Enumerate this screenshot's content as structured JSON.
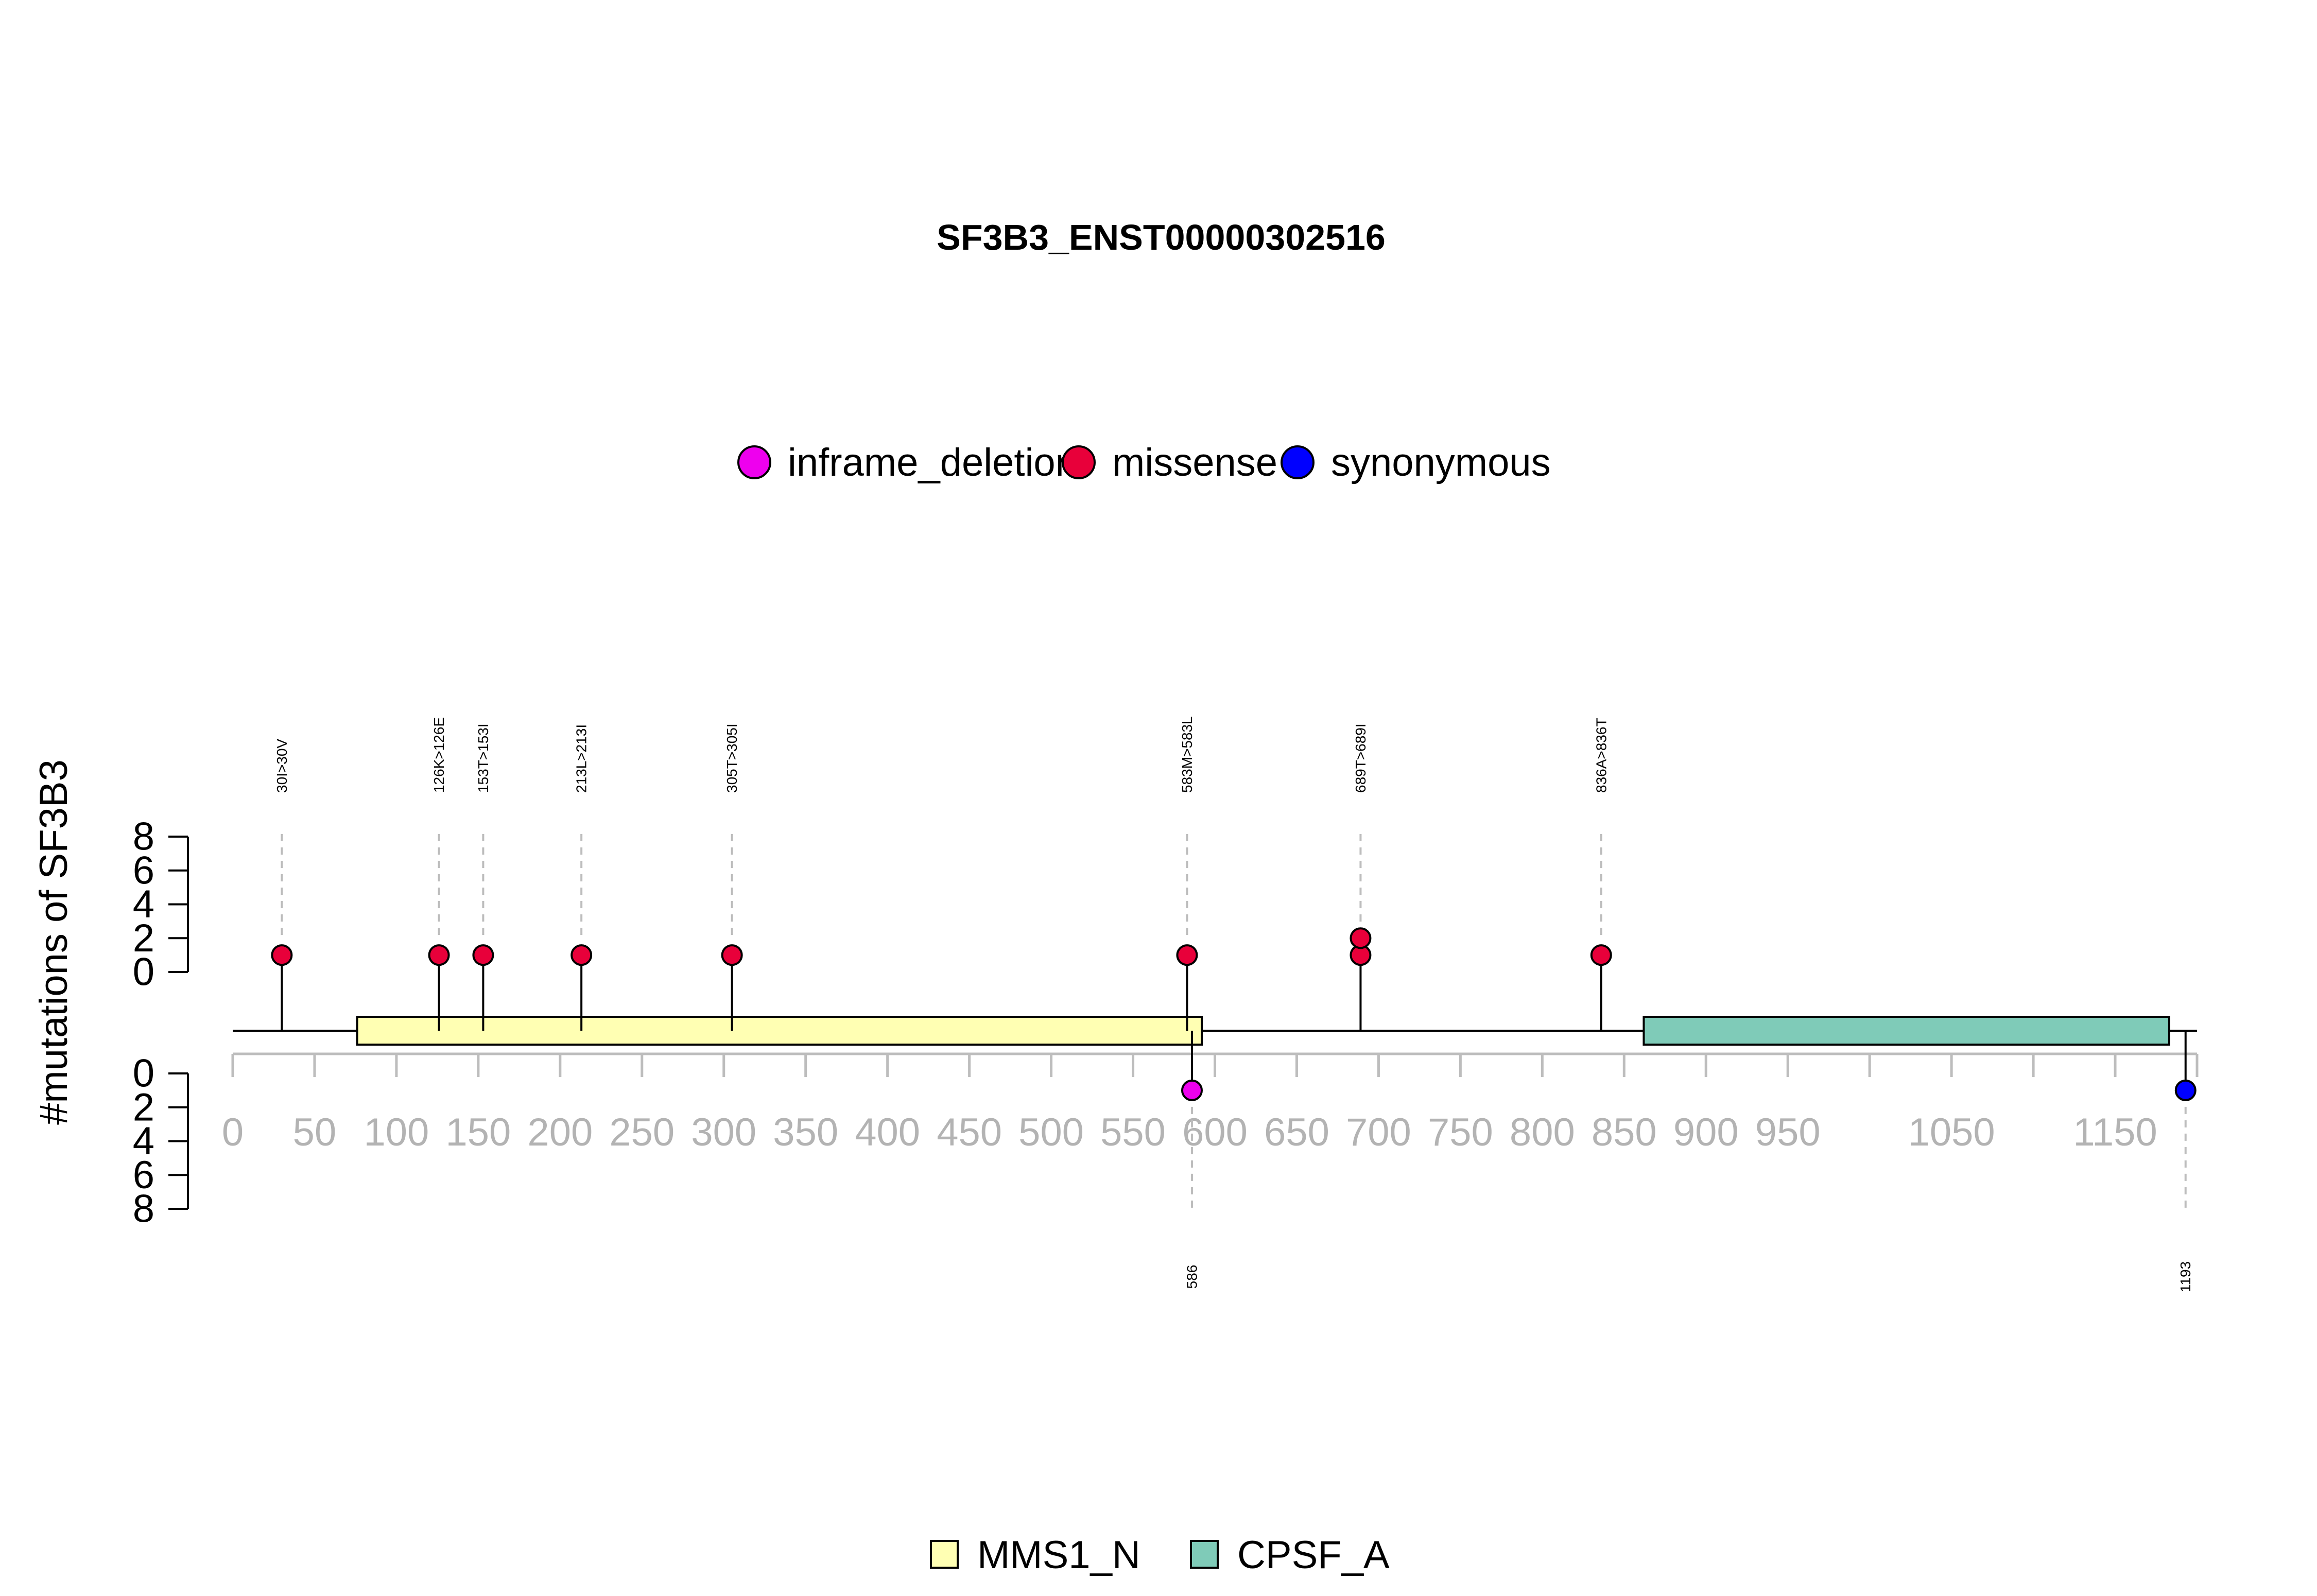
{
  "chart_data": {
    "type": "lollipop",
    "title": "SF3B3_ENST00000302516",
    "ylabel": "#mutations of SF3B3",
    "x_ticks": [
      0,
      50,
      100,
      150,
      200,
      250,
      300,
      350,
      400,
      450,
      500,
      550,
      600,
      650,
      700,
      750,
      800,
      850,
      900,
      950,
      1050,
      1150
    ],
    "x_minor_ticks": [
      1000,
      1100
    ],
    "xlim": [
      0,
      1200
    ],
    "y_ticks_upper": [
      0,
      2,
      4,
      6,
      8
    ],
    "y_ticks_lower": [
      0,
      2,
      4,
      6,
      8
    ],
    "protein_length": 1200,
    "mutation_legend": [
      {
        "name": "inframe_deletion",
        "color": "#ee00ee"
      },
      {
        "name": "missense",
        "color": "#e8003a"
      },
      {
        "name": "synonymous",
        "color": "#0000ff"
      }
    ],
    "domain_legend": [
      {
        "name": "MMS1_N",
        "color": "#ffffb3"
      },
      {
        "name": "CPSF_A",
        "color": "#7fcbb8"
      }
    ],
    "domains": [
      {
        "name": "MMS1_N",
        "start": 76,
        "end": 592,
        "color": "#ffffb3"
      },
      {
        "name": "CPSF_A",
        "start": 862,
        "end": 1183,
        "color": "#7fcbb8"
      }
    ],
    "upper_mutations": [
      {
        "position": 30,
        "label": "30I>30V",
        "count": 1,
        "type": "missense"
      },
      {
        "position": 126,
        "label": "126K>126E",
        "count": 1,
        "type": "missense"
      },
      {
        "position": 153,
        "label": "153T>153I",
        "count": 1,
        "type": "missense"
      },
      {
        "position": 213,
        "label": "213L>213I",
        "count": 1,
        "type": "missense"
      },
      {
        "position": 305,
        "label": "305T>305I",
        "count": 1,
        "type": "missense"
      },
      {
        "position": 583,
        "label": "583M>583L",
        "count": 1,
        "type": "missense"
      },
      {
        "position": 689,
        "label": "689T>689I",
        "count": 2,
        "type": "missense"
      },
      {
        "position": 836,
        "label": "836A>836T",
        "count": 1,
        "type": "missense"
      }
    ],
    "lower_mutations": [
      {
        "position": 586,
        "label": "586",
        "count": 1,
        "type": "inframe_deletion"
      },
      {
        "position": 1193,
        "label": "1193",
        "count": 1,
        "type": "synonymous"
      }
    ]
  }
}
